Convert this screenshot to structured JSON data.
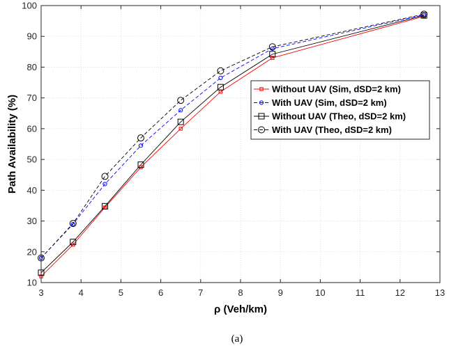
{
  "chart_data": {
    "type": "line",
    "xlabel": "ρ (Veh/km)",
    "ylabel": "Path Availability (%)",
    "caption": "(a)",
    "xlim": [
      3,
      13
    ],
    "ylim": [
      10,
      100
    ],
    "xticks": [
      3,
      4,
      5,
      6,
      7,
      8,
      9,
      10,
      11,
      12,
      13
    ],
    "yticks": [
      10,
      20,
      30,
      40,
      50,
      60,
      70,
      80,
      90,
      100
    ],
    "grid": true,
    "legend_position": "right",
    "series": [
      {
        "name": "Without UAV (Sim, dSD=2 km)",
        "color": "#ff0000",
        "line": "solid",
        "marker": "square-small",
        "x": [
          3,
          3.8,
          4.6,
          5.5,
          6.5,
          7.5,
          8.8,
          12.6
        ],
        "y": [
          12,
          22.3,
          34.4,
          47.5,
          60,
          72,
          83,
          96.5
        ]
      },
      {
        "name": "With UAV (Sim, dSD=2 km)",
        "color": "#0000ff",
        "line": "dashed",
        "marker": "circle-small",
        "x": [
          3,
          3.8,
          4.6,
          5.5,
          6.5,
          7.5,
          8.8,
          12.6
        ],
        "y": [
          18,
          29,
          42,
          54.5,
          66,
          76.5,
          86,
          97
        ]
      },
      {
        "name": "Without UAV (Theo, dSD=2 km)",
        "color": "#000000",
        "line": "solid",
        "marker": "square",
        "x": [
          3,
          3.8,
          4.6,
          5.5,
          6.5,
          7.5,
          8.8,
          12.6
        ],
        "y": [
          13.2,
          23.2,
          34.8,
          48.3,
          62.2,
          73.5,
          84.2,
          96.8
        ]
      },
      {
        "name": "With UAV (Theo, dSD=2 km)",
        "color": "#000000",
        "line": "dashed",
        "marker": "circle",
        "x": [
          3,
          3.8,
          4.6,
          5.5,
          6.5,
          7.5,
          8.8,
          12.6
        ],
        "y": [
          18,
          29.2,
          44.5,
          57,
          69.2,
          78.8,
          86.6,
          97.2
        ]
      }
    ]
  }
}
